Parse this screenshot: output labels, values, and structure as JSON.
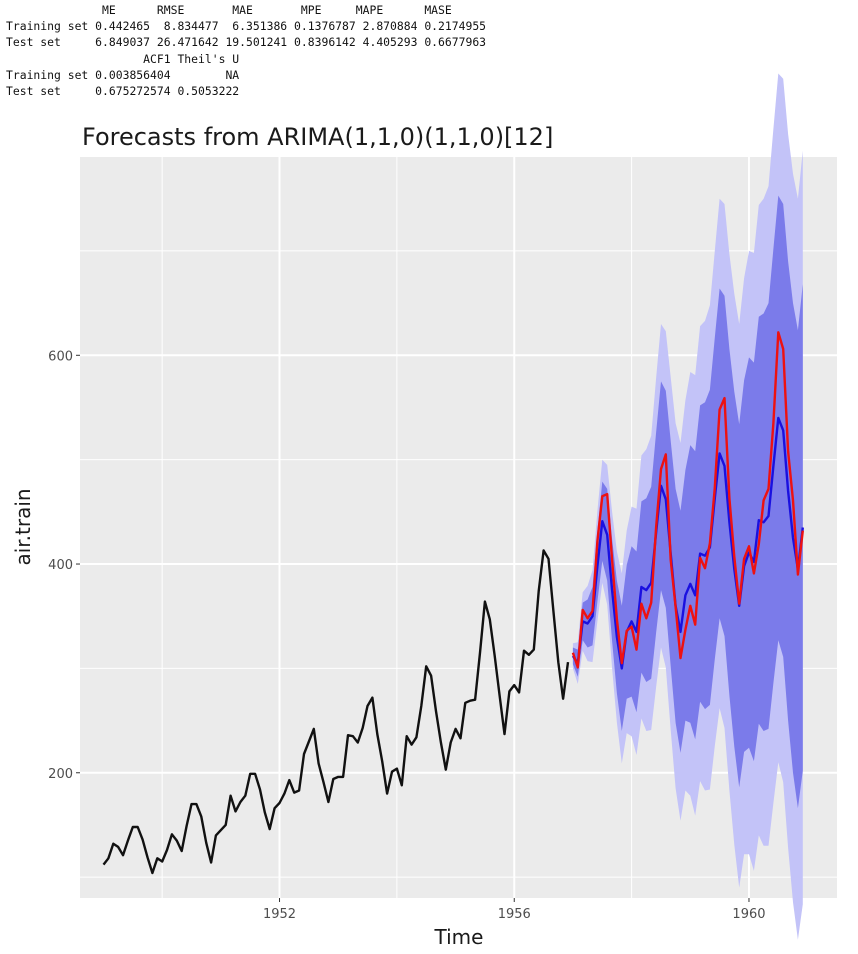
{
  "accuracy_table": {
    "header1": "              ME      RMSE       MAE       MPE     MAPE      MASE",
    "row1": "Training set 0.442465  8.834477  6.351386 0.1376787 2.870884 0.2174955",
    "row2": "Test set     6.849037 26.471642 19.501241 0.8396142 4.405293 0.6677963",
    "header2": "                    ACF1 Theil's U",
    "row3": "Training set 0.003856404        NA",
    "row4": "Test set     0.675272574 0.5053222"
  },
  "colors": {
    "panel_bg": "#ebebeb",
    "grid": "#ffffff",
    "history_line": "#111111",
    "forecast_line": "#1a10e0",
    "actual_line": "#ee1111",
    "band_80": "#7b7bea",
    "band_95": "#c3c3f8"
  },
  "chart_data": {
    "type": "line",
    "title": "Forecasts from ARIMA(1,1,0)(1,1,0)[12]",
    "xlabel": "Time",
    "ylabel": "air.train",
    "x_ticks": [
      1952,
      1956,
      1960
    ],
    "y_ticks": [
      200,
      400,
      600
    ],
    "xlim": [
      1948.6,
      1961.5
    ],
    "ylim": [
      80,
      790
    ],
    "grid": true,
    "legend": "none",
    "frequency": 12,
    "series": [
      {
        "role": "history",
        "start": 1949.0,
        "values": [
          112,
          118,
          132,
          129,
          121,
          135,
          148,
          148,
          136,
          119,
          104,
          118,
          115,
          126,
          141,
          135,
          125,
          149,
          170,
          170,
          158,
          133,
          114,
          140,
          145,
          150,
          178,
          163,
          172,
          178,
          199,
          199,
          184,
          162,
          146,
          166,
          171,
          180,
          193,
          181,
          183,
          218,
          230,
          242,
          209,
          191,
          172,
          194,
          196,
          196,
          236,
          235,
          229,
          243,
          264,
          272,
          237,
          211,
          180,
          201,
          204,
          188,
          235,
          227,
          234,
          264,
          302,
          293,
          259,
          229,
          203,
          229,
          242,
          233,
          267,
          269,
          270,
          315,
          364,
          347,
          312,
          274,
          237,
          278,
          284,
          277,
          317,
          313,
          318,
          374,
          413,
          405,
          355,
          306,
          271,
          306
        ]
      },
      {
        "role": "forecast",
        "start": 1957.0,
        "values": [
          312,
          305,
          345,
          343,
          350,
          398,
          441,
          428,
          375,
          330,
          300,
          335,
          345,
          335,
          378,
          375,
          382,
          430,
          475,
          462,
          410,
          360,
          335,
          370,
          381,
          370,
          410,
          408,
          416,
          462,
          506,
          494,
          440,
          395,
          360,
          398,
          411,
          402,
          442,
          440,
          446,
          494,
          540,
          528,
          470,
          425,
          395,
          435
        ]
      },
      {
        "role": "actual",
        "start": 1957.0,
        "values": [
          315,
          301,
          356,
          348,
          355,
          422,
          465,
          467,
          404,
          347,
          305,
          336,
          340,
          318,
          362,
          348,
          363,
          435,
          491,
          505,
          404,
          359,
          310,
          337,
          360,
          342,
          406,
          396,
          420,
          472,
          548,
          559,
          463,
          407,
          362,
          405,
          417,
          391,
          419,
          461,
          472,
          535,
          622,
          606,
          508,
          461,
          390,
          432
        ]
      },
      {
        "role": "lo80",
        "start": 1957.0,
        "values": [
          304,
          292,
          327,
          320,
          322,
          364,
          403,
          384,
          326,
          276,
          240,
          271,
          273,
          258,
          296,
          287,
          290,
          334,
          375,
          358,
          302,
          248,
          219,
          250,
          248,
          232,
          268,
          261,
          265,
          308,
          348,
          331,
          274,
          225,
          186,
          220,
          224,
          211,
          247,
          240,
          242,
          286,
          327,
          311,
          250,
          200,
          166,
          202
        ]
      },
      {
        "role": "hi80",
        "start": 1957.0,
        "values": [
          320,
          318,
          363,
          366,
          378,
          432,
          479,
          472,
          424,
          384,
          360,
          399,
          417,
          412,
          460,
          463,
          474,
          526,
          575,
          566,
          518,
          472,
          451,
          490,
          514,
          508,
          552,
          555,
          567,
          616,
          664,
          657,
          606,
          565,
          534,
          576,
          598,
          593,
          637,
          640,
          650,
          702,
          753,
          745,
          690,
          650,
          624,
          668
        ]
      },
      {
        "role": "lo95",
        "start": 1957.0,
        "values": [
          300,
          285,
          317,
          307,
          306,
          345,
          382,
          361,
          300,
          248,
          209,
          238,
          235,
          217,
          252,
          240,
          241,
          282,
          320,
          301,
          241,
          185,
          154,
          183,
          178,
          159,
          192,
          183,
          184,
          225,
          262,
          243,
          183,
          131,
          90,
          122,
          122,
          106,
          140,
          130,
          130,
          171,
          210,
          191,
          128,
          76,
          40,
          74
        ]
      },
      {
        "role": "hi95",
        "start": 1957.0,
        "values": [
          324,
          325,
          373,
          379,
          394,
          451,
          500,
          495,
          450,
          412,
          391,
          432,
          455,
          453,
          504,
          510,
          523,
          578,
          630,
          623,
          579,
          535,
          516,
          557,
          584,
          581,
          628,
          633,
          648,
          699,
          750,
          745,
          697,
          659,
          630,
          674,
          700,
          698,
          744,
          750,
          762,
          817,
          870,
          865,
          812,
          774,
          750,
          796
        ]
      }
    ]
  }
}
